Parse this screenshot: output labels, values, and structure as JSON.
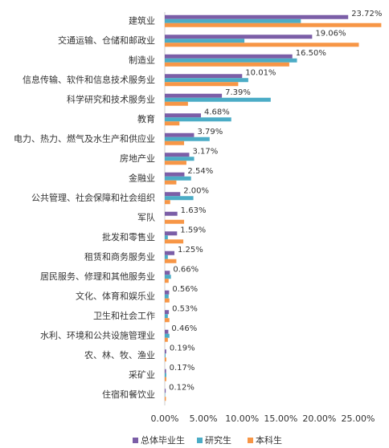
{
  "chart_data": {
    "type": "hbar",
    "categories": [
      "建筑业",
      "交通运输、仓储和邮政业",
      "制造业",
      "信息传输、软件和信息技术服务业",
      "科学研究和技术服务业",
      "教育",
      "电力、热力、燃气及水生产和供应业",
      "房地产业",
      "金融业",
      "公共管理、社会保障和社会组织",
      "军队",
      "批发和零售业",
      "租赁和商务服务业",
      "居民服务、修理和其他服务业",
      "文化、体育和娱乐业",
      "卫生和社会工作",
      "水利、环境和公共设施管理业",
      "农、林、牧、渔业",
      "采矿业",
      "住宿和餐饮业"
    ],
    "series": [
      {
        "name": "总体毕业生",
        "color": "#7b5ea7",
        "values": [
          23.72,
          19.06,
          16.5,
          10.01,
          7.39,
          4.68,
          3.79,
          3.17,
          2.54,
          2.0,
          1.63,
          1.59,
          1.25,
          0.66,
          0.56,
          0.53,
          0.46,
          0.19,
          0.17,
          0.12
        ],
        "value_labels": [
          "23.72%",
          "19.06%",
          "16.50%",
          "10.01%",
          "7.39%",
          "4.68%",
          "3.79%",
          "3.17%",
          "2.54%",
          "2.00%",
          "1.63%",
          "1.59%",
          "1.25%",
          "0.66%",
          "0.56%",
          "0.53%",
          "0.46%",
          "0.19%",
          "0.17%",
          "0.12%"
        ]
      },
      {
        "name": "研究生",
        "color": "#4bacc6",
        "values": [
          17.6,
          10.3,
          17.1,
          10.8,
          13.7,
          8.6,
          5.8,
          3.8,
          3.4,
          3.7,
          0,
          0.4,
          0.4,
          0.8,
          0.5,
          0.4,
          0.6,
          0.1,
          0.2,
          0.05
        ]
      },
      {
        "name": "本科生",
        "color": "#f79646",
        "values": [
          28.0,
          25.1,
          16.1,
          9.5,
          3.0,
          1.9,
          2.5,
          2.8,
          1.5,
          0.7,
          2.5,
          2.4,
          1.5,
          0.5,
          0.6,
          0.6,
          0.4,
          0.2,
          0.2,
          0.15
        ]
      }
    ],
    "xlim": [
      0,
      29
    ],
    "xticks": [
      {
        "value": 0,
        "label": "0.00%"
      },
      {
        "value": 5,
        "label": "5.00%"
      },
      {
        "value": 10,
        "label": "10.00%"
      },
      {
        "value": 15,
        "label": "15.00%"
      },
      {
        "value": 20,
        "label": "20.00%"
      },
      {
        "value": 25,
        "label": "25.00%"
      }
    ]
  }
}
